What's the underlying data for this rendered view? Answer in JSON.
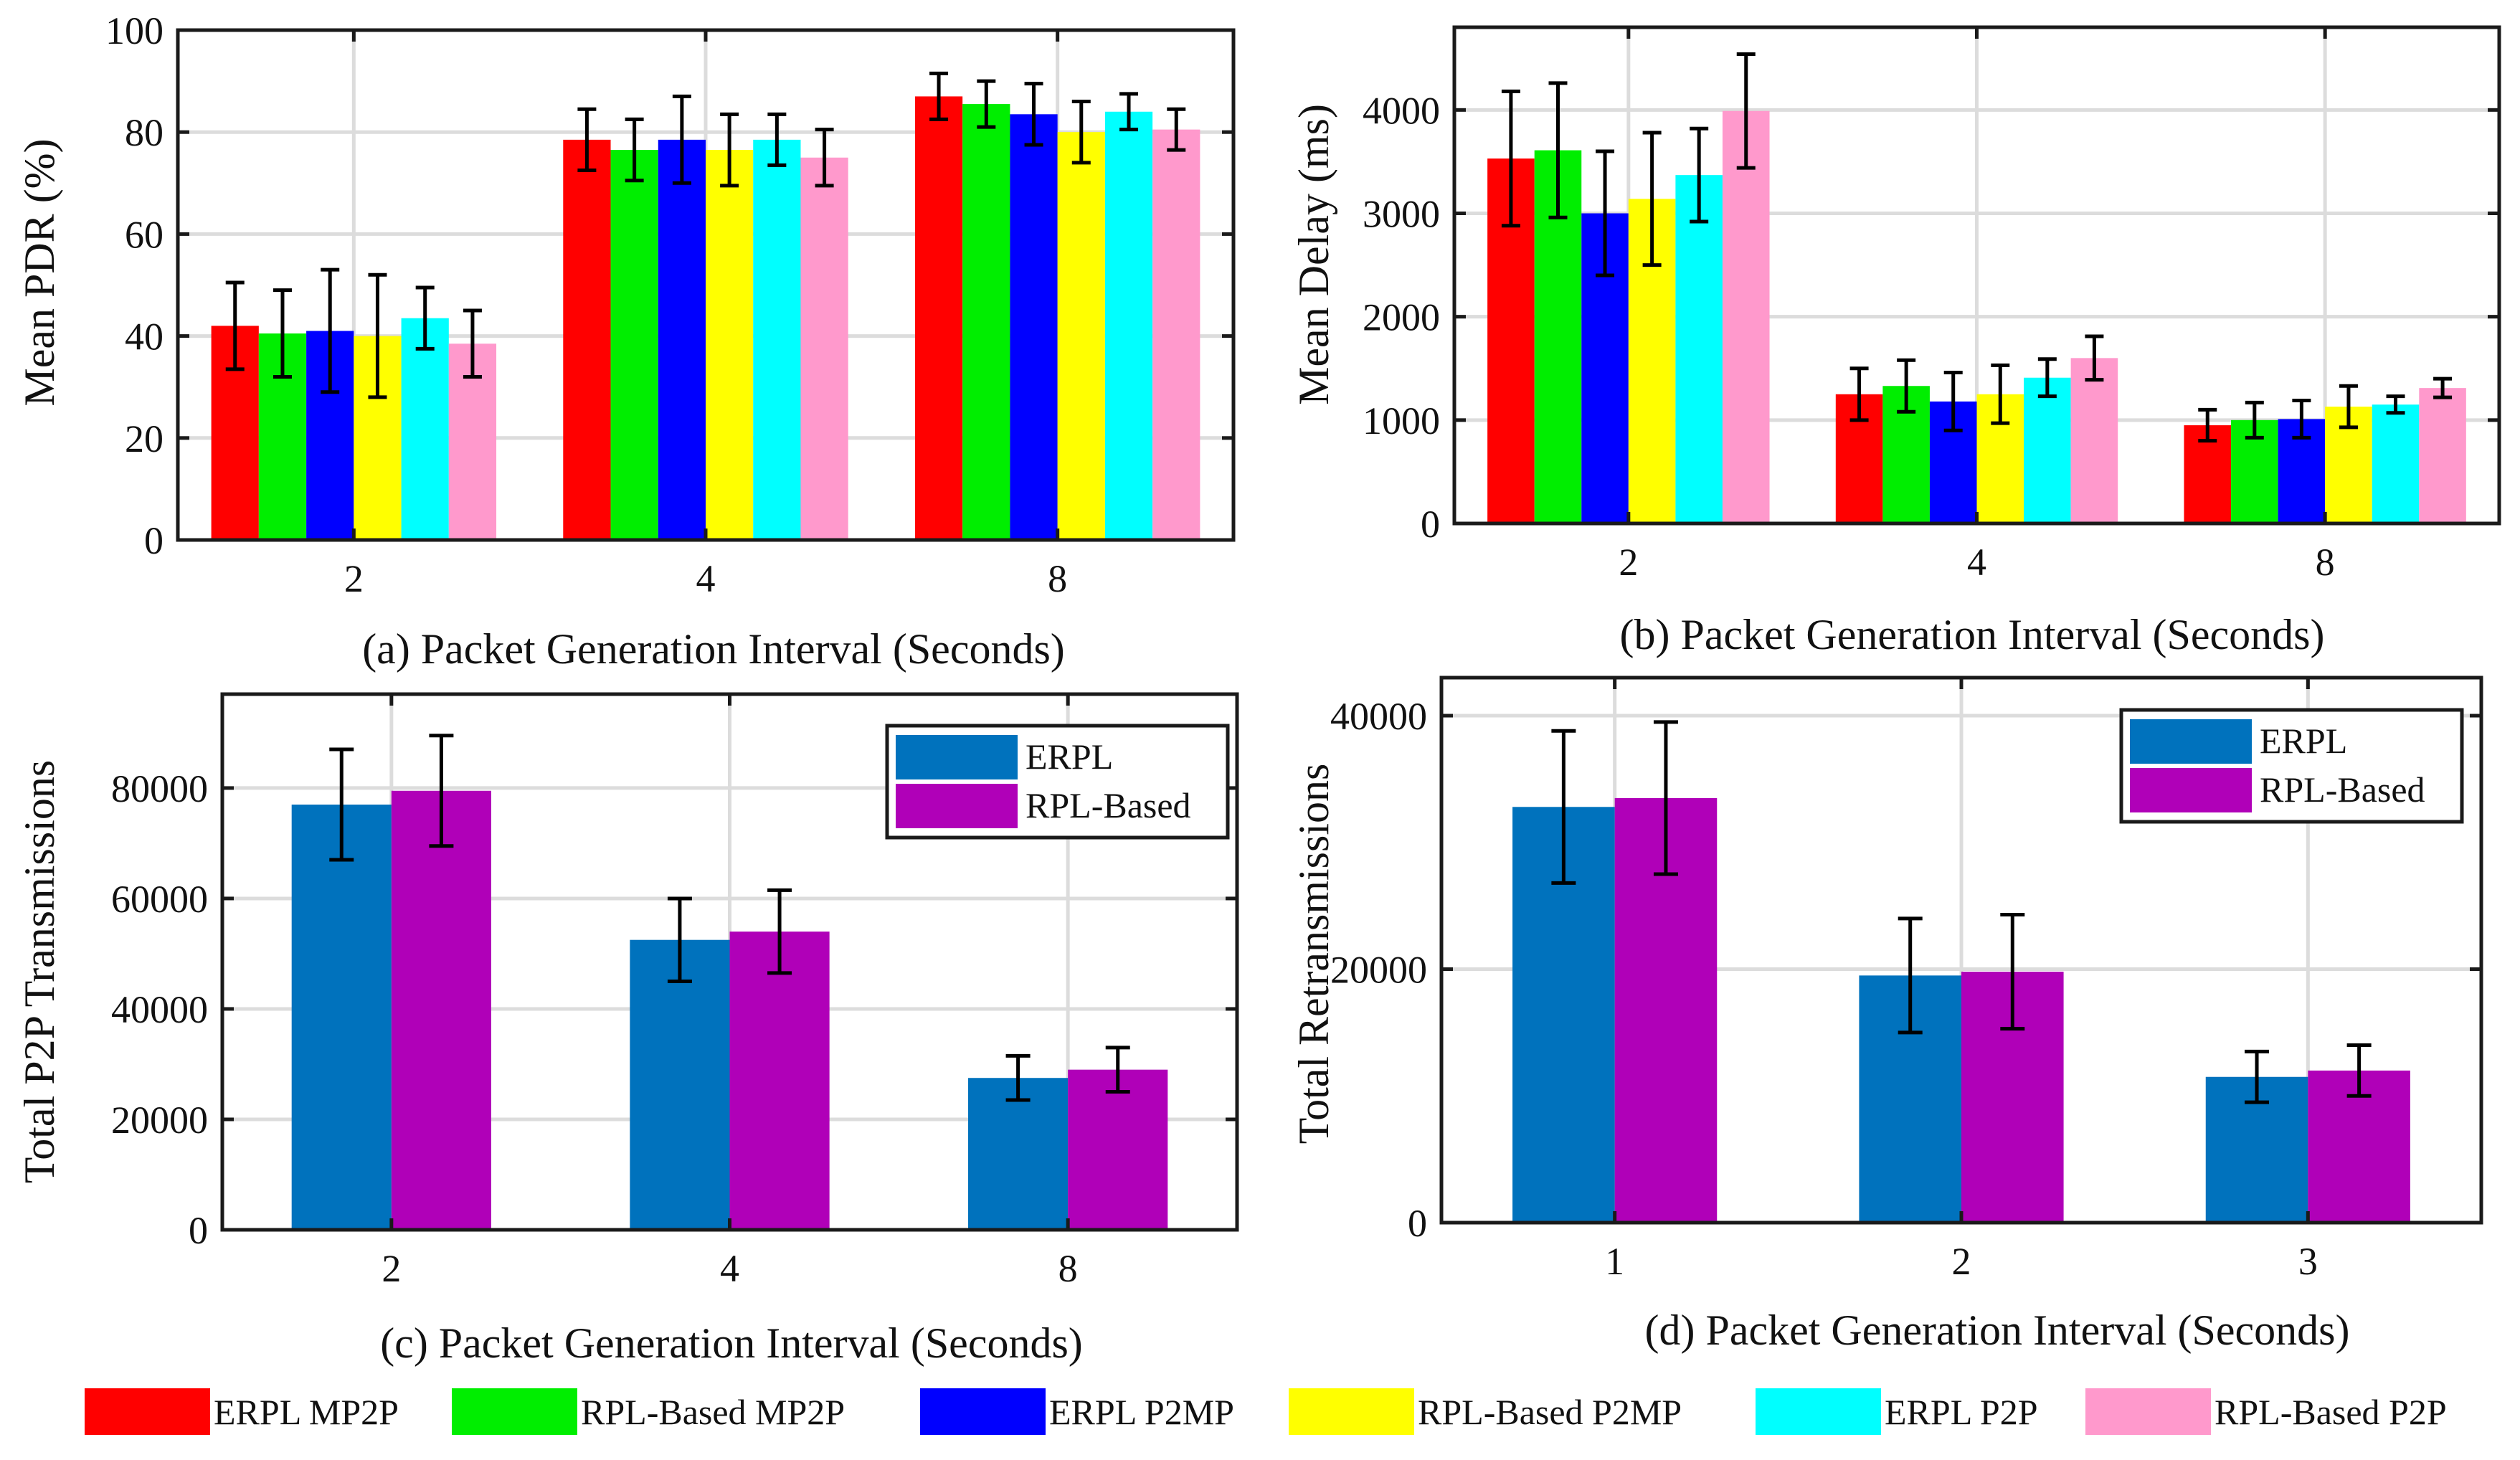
{
  "chart_data": [
    {
      "id": "a",
      "type": "bar",
      "xlabel": "(a) Packet Generation Interval (Seconds)",
      "ylabel": "Mean PDR (%)",
      "categories": [
        "2",
        "4",
        "8"
      ],
      "ylim": [
        0,
        100
      ],
      "yticks": [
        0,
        20,
        40,
        60,
        80,
        100
      ],
      "grid": true,
      "series": [
        {
          "name": "ERPL MP2P",
          "color": "#ff0000",
          "values": [
            42,
            78.5,
            87
          ],
          "err": [
            8.5,
            6,
            4.5
          ]
        },
        {
          "name": "RPL-Based MP2P",
          "color": "#00ee00",
          "values": [
            40.5,
            76.5,
            85.5
          ],
          "err": [
            8.5,
            6,
            4.5
          ]
        },
        {
          "name": "ERPL P2MP",
          "color": "#0000ff",
          "values": [
            41,
            78.5,
            83.5
          ],
          "err": [
            12,
            8.5,
            6
          ]
        },
        {
          "name": "RPL-Based P2MP",
          "color": "#ffff00",
          "values": [
            40,
            76.5,
            80
          ],
          "err": [
            12,
            7,
            6
          ]
        },
        {
          "name": "ERPL P2P",
          "color": "#00ffff",
          "values": [
            43.5,
            78.5,
            84
          ],
          "err": [
            6,
            5,
            3.5
          ]
        },
        {
          "name": "RPL-Based P2P",
          "color": "#ff99cc",
          "values": [
            38.5,
            75,
            80.5
          ],
          "err": [
            6.5,
            5.5,
            4
          ]
        }
      ]
    },
    {
      "id": "b",
      "type": "bar",
      "xlabel": "(b) Packet Generation Interval (Seconds)",
      "ylabel": "Mean Delay (ms)",
      "categories": [
        "2",
        "4",
        "8"
      ],
      "ylim": [
        0,
        4800
      ],
      "yticks": [
        0,
        1000,
        2000,
        3000,
        4000
      ],
      "grid": true,
      "series": [
        {
          "name": "ERPL MP2P",
          "color": "#ff0000",
          "values": [
            3530,
            1250,
            950
          ],
          "err": [
            650,
            250,
            150
          ]
        },
        {
          "name": "RPL-Based MP2P",
          "color": "#00ee00",
          "values": [
            3610,
            1330,
            1000
          ],
          "err": [
            650,
            250,
            170
          ]
        },
        {
          "name": "ERPL P2MP",
          "color": "#0000ff",
          "values": [
            3000,
            1180,
            1010
          ],
          "err": [
            600,
            280,
            180
          ]
        },
        {
          "name": "RPL-Based P2MP",
          "color": "#ffff00",
          "values": [
            3140,
            1250,
            1130
          ],
          "err": [
            640,
            280,
            200
          ]
        },
        {
          "name": "ERPL P2P",
          "color": "#00ffff",
          "values": [
            3370,
            1410,
            1150
          ],
          "err": [
            450,
            180,
            80
          ]
        },
        {
          "name": "RPL-Based P2P",
          "color": "#ff99cc",
          "values": [
            3990,
            1600,
            1310
          ],
          "err": [
            550,
            210,
            90
          ]
        }
      ]
    },
    {
      "id": "c",
      "type": "bar",
      "xlabel": "(c) Packet Generation Interval (Seconds)",
      "ylabel": "Total P2P Transmissions",
      "categories": [
        "2",
        "4",
        "8"
      ],
      "ylim": [
        0,
        97000
      ],
      "yticks": [
        0,
        20000,
        40000,
        60000,
        80000
      ],
      "grid": true,
      "legend": "top-right",
      "series": [
        {
          "name": "ERPL",
          "color": "#0072bd",
          "values": [
            77000,
            52500,
            27500
          ],
          "err": [
            10000,
            7500,
            4000
          ]
        },
        {
          "name": "RPL-Based",
          "color": "#b000b8",
          "values": [
            79500,
            54000,
            29000
          ],
          "err": [
            10000,
            7500,
            4000
          ]
        }
      ]
    },
    {
      "id": "d",
      "type": "bar",
      "xlabel": "(d) Packet Generation Interval (Seconds)",
      "ylabel": "Total Retransmissions",
      "categories": [
        "1",
        "2",
        "3"
      ],
      "ylim": [
        0,
        43000
      ],
      "yticks": [
        0,
        20000,
        40000
      ],
      "grid": true,
      "legend": "top-right",
      "series": [
        {
          "name": "ERPL",
          "color": "#0072bd",
          "values": [
            32800,
            19500,
            11500
          ],
          "err": [
            6000,
            4500,
            2000
          ]
        },
        {
          "name": "RPL-Based",
          "color": "#b000b8",
          "values": [
            33500,
            19800,
            12000
          ],
          "err": [
            6000,
            4500,
            2000
          ]
        }
      ]
    }
  ],
  "legend_bottom": [
    {
      "name": "ERPL MP2P",
      "color": "#ff0000"
    },
    {
      "name": "RPL-Based MP2P",
      "color": "#00ee00"
    },
    {
      "name": "ERPL P2MP",
      "color": "#0000ff"
    },
    {
      "name": "RPL-Based P2MP",
      "color": "#ffff00"
    },
    {
      "name": "ERPL P2P",
      "color": "#00ffff"
    },
    {
      "name": "RPL-Based P2P",
      "color": "#ff99cc"
    }
  ]
}
